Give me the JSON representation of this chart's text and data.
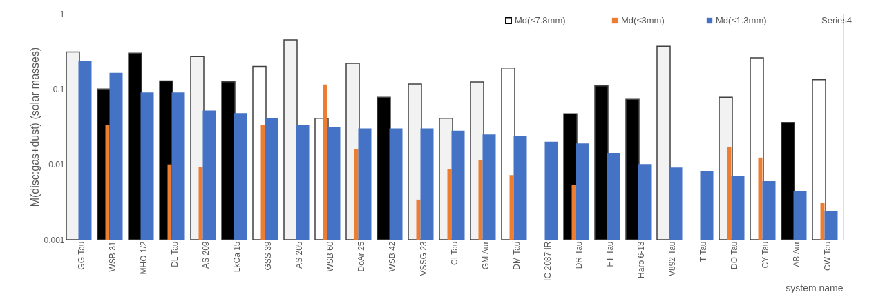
{
  "chart_data": {
    "type": "bar",
    "xlabel": "system name",
    "ylabel": "M(disc:gas+dust) (solar masses)",
    "categories": [
      "GG Tau",
      "WSB 31",
      "MHO 1/2",
      "DL Tau",
      "AS 209",
      "LkCa 15",
      "GSS 39",
      "AS 205",
      "WSB 60",
      "DoAr 25",
      "WSB 42",
      "VSSG 23",
      "CI Tau",
      "GM Aur",
      "DM Tau",
      "IC 2087 IR",
      "DR Tau",
      "FT Tau",
      "Haro 6-13",
      "V892 Tau",
      "T Tau",
      "DO Tau",
      "CY Tau",
      "AB Aur",
      "CW Tau"
    ],
    "series": [
      {
        "name": "Md(≤7.8mm)",
        "color": "#000000",
        "colors": [
          "#f2f2f2",
          "#000000",
          "#000000",
          "#000000",
          "#f2f2f2",
          "#000000",
          "#ffffff",
          "#f2f2f2",
          "#ffffff",
          "#f2f2f2",
          "#000000",
          "#f2f2f2",
          "#f2f2f2",
          "#f2f2f2",
          "#ffffff",
          null,
          "#000000",
          "#000000",
          "#000000",
          "#f2f2f2",
          null,
          "#f2f2f2",
          "#ffffff",
          "#000000",
          "#ffffff"
        ],
        "values": [
          0.31,
          0.1,
          0.3,
          0.128,
          0.27,
          0.125,
          0.2,
          0.45,
          0.041,
          0.22,
          0.078,
          0.117,
          0.041,
          0.124,
          0.19,
          null,
          0.047,
          0.11,
          0.073,
          0.37,
          null,
          0.078,
          0.26,
          0.036,
          0.133
        ]
      },
      {
        "name": "Md(≤3mm)",
        "color": "#ed7d31",
        "values": [
          null,
          0.033,
          null,
          0.01,
          0.0093,
          null,
          0.033,
          null,
          0.115,
          0.0158,
          null,
          0.0034,
          0.0086,
          0.0115,
          0.0072,
          null,
          0.0053,
          null,
          null,
          null,
          null,
          0.0168,
          0.0123,
          null,
          0.0031
        ]
      },
      {
        "name": "Md(≤1.3mm)",
        "color": "#4472c4",
        "values": [
          0.234,
          0.164,
          0.09,
          0.09,
          0.052,
          0.048,
          0.041,
          0.033,
          0.031,
          0.03,
          0.03,
          0.03,
          0.028,
          0.025,
          0.024,
          0.02,
          0.019,
          0.0142,
          0.0101,
          0.0091,
          0.0082,
          0.007,
          0.006,
          0.0044,
          0.0024
        ]
      },
      {
        "name": "Series4",
        "values": [
          null,
          null,
          null,
          null,
          null,
          null,
          null,
          null,
          null,
          null,
          null,
          null,
          null,
          null,
          null,
          null,
          null,
          null,
          null,
          null,
          null,
          null,
          null,
          null,
          null
        ]
      }
    ],
    "log": true,
    "ylim": [
      0.001,
      1
    ],
    "yticks": [
      0.001,
      0.01,
      0.1,
      1
    ],
    "grid": false,
    "legend": "top right"
  }
}
